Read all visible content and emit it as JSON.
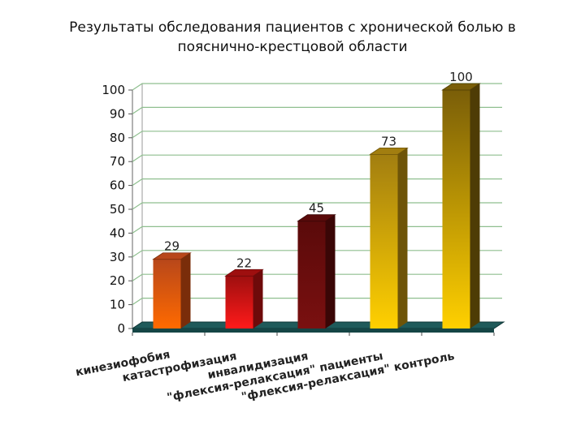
{
  "chart_data": {
    "type": "bar",
    "title_lines": [
      "Результаты обследования пациентов с хронической болью в",
      "пояснично-крестцовой области"
    ],
    "categories": [
      "кинезиофобия",
      "катастрофизация",
      "инвалидизация",
      "\"флексия-релаксация\" пациенты",
      "\"флексия-релаксация\" контроль"
    ],
    "values": [
      29,
      22,
      45,
      73,
      100
    ],
    "data_labels": [
      "29",
      "22",
      "45",
      "73",
      "100"
    ],
    "ylim": [
      0,
      100
    ],
    "yticks": [
      "0",
      "10",
      "20",
      "30",
      "40",
      "50",
      "60",
      "70",
      "80",
      "90",
      "100"
    ],
    "grid": true,
    "legend": "none",
    "bar_colors": [
      {
        "top": "#b8471a",
        "bottom": "#ff6a00",
        "side": "#7a2d0a"
      },
      {
        "top": "#9e0f0f",
        "bottom": "#ff1a1a",
        "side": "#6e0a0a"
      },
      {
        "top": "#5a0a0a",
        "bottom": "#7a1010",
        "side": "#3a0606"
      },
      {
        "top": "#a27e10",
        "bottom": "#ffd000",
        "side": "#6e5408"
      },
      {
        "top": "#7a5e08",
        "bottom": "#ffd000",
        "side": "#4e3c05"
      }
    ],
    "floor_color": "#1f5a5a"
  }
}
